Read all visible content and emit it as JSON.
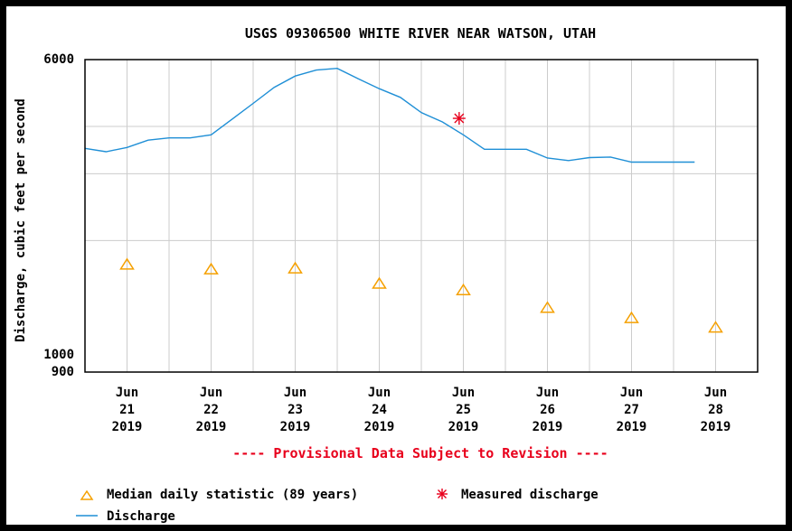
{
  "chart_data": {
    "type": "line",
    "title": "USGS 09306500 WHITE RIVER NEAR WATSON, UTAH",
    "ylabel": "Discharge, cubic feet per second",
    "y_scale": "log",
    "ylim": [
      900,
      6000
    ],
    "y_ticks": [
      {
        "value": 6000,
        "label": "6000"
      },
      {
        "value": 1000,
        "label": "1000"
      },
      {
        "value": 900,
        "label": "900"
      }
    ],
    "x_range": [
      "2019-06-20T12:00",
      "2019-06-28T12:00"
    ],
    "x_ticks": [
      {
        "day": 21,
        "label": [
          "Jun",
          "21",
          "2019"
        ]
      },
      {
        "day": 22,
        "label": [
          "Jun",
          "22",
          "2019"
        ]
      },
      {
        "day": 23,
        "label": [
          "Jun",
          "23",
          "2019"
        ]
      },
      {
        "day": 24,
        "label": [
          "Jun",
          "24",
          "2019"
        ]
      },
      {
        "day": 25,
        "label": [
          "Jun",
          "25",
          "2019"
        ]
      },
      {
        "day": 26,
        "label": [
          "Jun",
          "26",
          "2019"
        ]
      },
      {
        "day": 27,
        "label": [
          "Jun",
          "27",
          "2019"
        ]
      },
      {
        "day": 28,
        "label": [
          "Jun",
          "28",
          "2019"
        ]
      }
    ],
    "grid": true,
    "discharge": {
      "name": "Discharge",
      "color": "#1f8fd6",
      "x_days": [
        20.5,
        20.75,
        21.0,
        21.25,
        21.5,
        21.75,
        22.0,
        22.25,
        22.5,
        22.75,
        23.0,
        23.25,
        23.5,
        23.75,
        24.0,
        24.25,
        24.5,
        24.75,
        25.0,
        25.25,
        25.5,
        25.75,
        26.0,
        26.25,
        26.5,
        26.75,
        27.0,
        27.25,
        27.5,
        27.75,
        27.75
      ],
      "values": [
        3500,
        3430,
        3520,
        3680,
        3730,
        3730,
        3800,
        4180,
        4600,
        5070,
        5430,
        5630,
        5690,
        5340,
        5030,
        4770,
        4350,
        4110,
        3800,
        3480,
        3480,
        3480,
        3300,
        3250,
        3310,
        3320,
        3220,
        3220,
        3220,
        3220,
        3220
      ]
    },
    "median_daily": {
      "name": "Median daily statistic (89 years)",
      "color": "#f5a000",
      "x_days": [
        21,
        22,
        23,
        24,
        25,
        26,
        27,
        28
      ],
      "values": [
        1730,
        1680,
        1690,
        1540,
        1480,
        1330,
        1250,
        1180
      ]
    },
    "measured": {
      "name": "Measured discharge",
      "color": "#e8001c",
      "x_days": [
        24.95
      ],
      "values": [
        4200
      ]
    },
    "provisional_note": "---- Provisional Data Subject to Revision ----"
  }
}
